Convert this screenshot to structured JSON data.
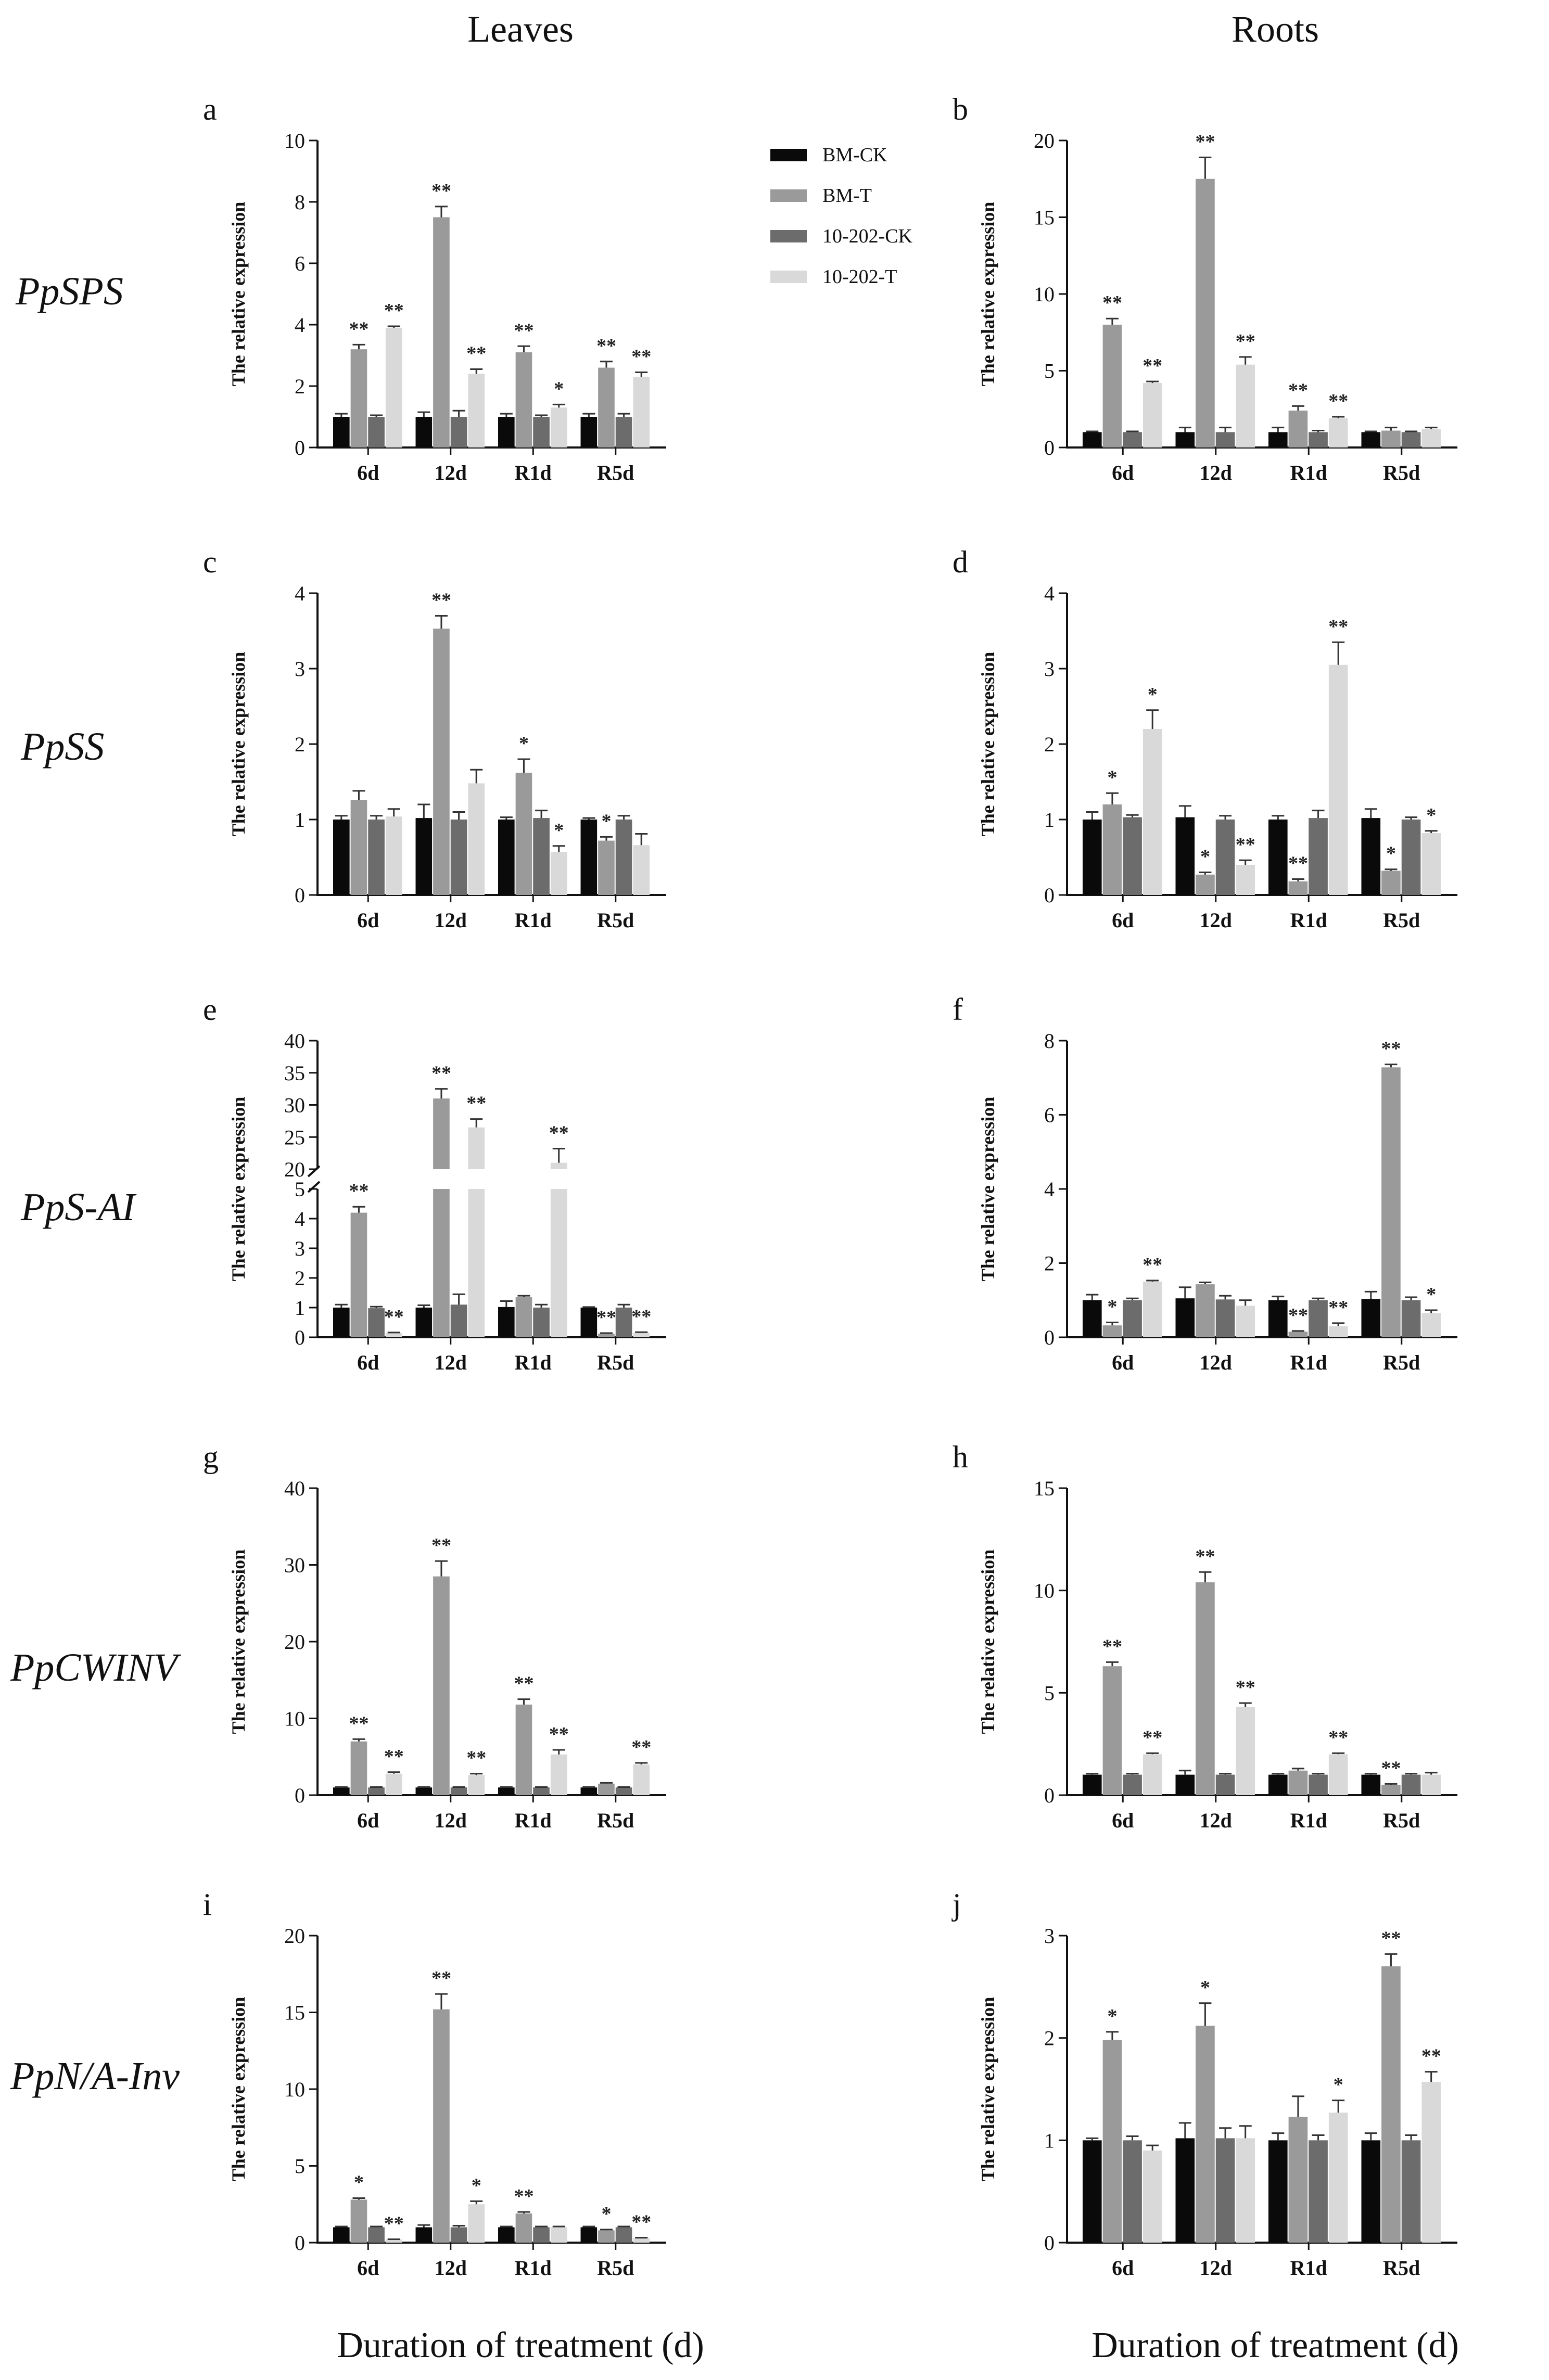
{
  "figure": {
    "column_headers": [
      "Leaves",
      "Roots"
    ],
    "x_axis_title": "Duration of treatment (d)"
  },
  "genes": [
    "PpSPS",
    "PpSS",
    "PpS-AI",
    "PpCWINV",
    "PpN/A-Inv"
  ],
  "legend": {
    "entries": [
      "BM-CK",
      "BM-T",
      "10-202-CK",
      "10-202-T"
    ]
  },
  "colors": {
    "series": [
      "#0a0a0a",
      "#9a9a9a",
      "#6c6c6c",
      "#d9d9d9"
    ],
    "axis": "#111111"
  },
  "chart_data": [
    {
      "panel": "a",
      "type": "bar",
      "ylabel": "The relative expression",
      "categories": [
        "6d",
        "12d",
        "R1d",
        "R5d"
      ],
      "ylim": [
        0,
        10
      ],
      "yticks": [
        0,
        2,
        4,
        6,
        8,
        10
      ],
      "series": [
        {
          "name": "BM-CK",
          "values": [
            1.0,
            1.0,
            1.0,
            1.0
          ],
          "errors": [
            0.1,
            0.15,
            0.1,
            0.1
          ],
          "sig": [
            "",
            "",
            "",
            ""
          ]
        },
        {
          "name": "BM-T",
          "values": [
            3.2,
            7.5,
            3.1,
            2.6
          ],
          "errors": [
            0.15,
            0.35,
            0.2,
            0.2
          ],
          "sig": [
            "**",
            "**",
            "**",
            "**"
          ]
        },
        {
          "name": "10-202-CK",
          "values": [
            1.0,
            1.0,
            1.0,
            1.0
          ],
          "errors": [
            0.05,
            0.2,
            0.05,
            0.1
          ],
          "sig": [
            "",
            "",
            "",
            ""
          ]
        },
        {
          "name": "10-202-T",
          "values": [
            3.9,
            2.4,
            1.3,
            2.3
          ],
          "errors": [
            0.05,
            0.15,
            0.1,
            0.15
          ],
          "sig": [
            "**",
            "**",
            "*",
            "**"
          ]
        }
      ]
    },
    {
      "panel": "b",
      "type": "bar",
      "ylabel": "The relative expression",
      "categories": [
        "6d",
        "12d",
        "R1d",
        "R5d"
      ],
      "ylim": [
        0,
        20
      ],
      "yticks": [
        0,
        5,
        10,
        15,
        20
      ],
      "series": [
        {
          "name": "BM-CK",
          "values": [
            1.0,
            1.0,
            1.0,
            1.0
          ],
          "errors": [
            0.05,
            0.3,
            0.3,
            0.05
          ],
          "sig": [
            "",
            "",
            "",
            ""
          ]
        },
        {
          "name": "BM-T",
          "values": [
            8.0,
            17.5,
            2.4,
            1.1
          ],
          "errors": [
            0.4,
            1.4,
            0.3,
            0.2
          ],
          "sig": [
            "**",
            "**",
            "**",
            ""
          ]
        },
        {
          "name": "10-202-CK",
          "values": [
            1.0,
            1.0,
            1.0,
            1.0
          ],
          "errors": [
            0.05,
            0.3,
            0.1,
            0.05
          ],
          "sig": [
            "",
            "",
            "",
            ""
          ]
        },
        {
          "name": "10-202-T",
          "values": [
            4.2,
            5.4,
            1.9,
            1.2
          ],
          "errors": [
            0.1,
            0.5,
            0.1,
            0.1
          ],
          "sig": [
            "**",
            "**",
            "**",
            ""
          ]
        }
      ]
    },
    {
      "panel": "c",
      "type": "bar",
      "ylabel": "The relative expression",
      "categories": [
        "6d",
        "12d",
        "R1d",
        "R5d"
      ],
      "ylim": [
        0,
        4
      ],
      "yticks": [
        0,
        1,
        2,
        3,
        4
      ],
      "series": [
        {
          "name": "BM-CK",
          "values": [
            1.0,
            1.02,
            1.0,
            1.0
          ],
          "errors": [
            0.05,
            0.18,
            0.03,
            0.02
          ],
          "sig": [
            "",
            "",
            "",
            ""
          ]
        },
        {
          "name": "BM-T",
          "values": [
            1.26,
            3.53,
            1.62,
            0.72
          ],
          "errors": [
            0.12,
            0.17,
            0.18,
            0.05
          ],
          "sig": [
            "",
            "**",
            "*",
            "*"
          ]
        },
        {
          "name": "10-202-CK",
          "values": [
            1.0,
            1.0,
            1.02,
            1.0
          ],
          "errors": [
            0.05,
            0.1,
            0.1,
            0.05
          ],
          "sig": [
            "",
            "",
            "",
            ""
          ]
        },
        {
          "name": "10-202-T",
          "values": [
            1.04,
            1.48,
            0.57,
            0.66
          ],
          "errors": [
            0.1,
            0.18,
            0.08,
            0.15
          ],
          "sig": [
            "",
            "",
            "*",
            ""
          ]
        }
      ]
    },
    {
      "panel": "d",
      "type": "bar",
      "ylabel": "The relative expression",
      "categories": [
        "6d",
        "12d",
        "R1d",
        "R5d"
      ],
      "ylim": [
        0,
        4
      ],
      "yticks": [
        0,
        1,
        2,
        3,
        4
      ],
      "series": [
        {
          "name": "BM-CK",
          "values": [
            1.0,
            1.03,
            1.0,
            1.02
          ],
          "errors": [
            0.1,
            0.15,
            0.05,
            0.12
          ],
          "sig": [
            "",
            "",
            "",
            ""
          ]
        },
        {
          "name": "BM-T",
          "values": [
            1.2,
            0.27,
            0.18,
            0.32
          ],
          "errors": [
            0.15,
            0.03,
            0.03,
            0.02
          ],
          "sig": [
            "*",
            "*",
            "**",
            "*"
          ]
        },
        {
          "name": "10-202-CK",
          "values": [
            1.03,
            1.0,
            1.02,
            1.0
          ],
          "errors": [
            0.03,
            0.05,
            0.1,
            0.03
          ],
          "sig": [
            "",
            "",
            "",
            ""
          ]
        },
        {
          "name": "10-202-T",
          "values": [
            2.2,
            0.4,
            3.05,
            0.82
          ],
          "errors": [
            0.25,
            0.06,
            0.3,
            0.03
          ],
          "sig": [
            "*",
            "**",
            "**",
            "*"
          ]
        }
      ]
    },
    {
      "panel": "e",
      "type": "bar",
      "ylabel": "The relative expression",
      "categories": [
        "6d",
        "12d",
        "R1d",
        "R5d"
      ],
      "axis_break": {
        "lower": [
          0,
          5
        ],
        "upper": [
          20,
          40
        ]
      },
      "yticks": [
        0,
        1,
        2,
        3,
        4,
        5,
        20,
        25,
        30,
        35,
        40
      ],
      "series": [
        {
          "name": "BM-CK",
          "values": [
            1.0,
            1.0,
            1.02,
            1.0
          ],
          "errors": [
            0.1,
            0.08,
            0.2,
            0.02
          ],
          "sig": [
            "",
            "",
            "",
            ""
          ]
        },
        {
          "name": "BM-T",
          "values": [
            4.2,
            31.0,
            1.35,
            0.12
          ],
          "errors": [
            0.2,
            1.5,
            0.05,
            0.02
          ],
          "sig": [
            "**",
            "**",
            "",
            "**"
          ]
        },
        {
          "name": "10-202-CK",
          "values": [
            0.98,
            1.1,
            1.0,
            1.0
          ],
          "errors": [
            0.05,
            0.35,
            0.1,
            0.1
          ],
          "sig": [
            "",
            "",
            "",
            ""
          ]
        },
        {
          "name": "10-202-T",
          "values": [
            0.14,
            26.5,
            21.0,
            0.15
          ],
          "errors": [
            0.02,
            1.3,
            2.2,
            0.02
          ],
          "sig": [
            "**",
            "**",
            "**",
            "**"
          ]
        }
      ]
    },
    {
      "panel": "f",
      "type": "bar",
      "ylabel": "The relative expression",
      "categories": [
        "6d",
        "12d",
        "R1d",
        "R5d"
      ],
      "ylim": [
        0,
        8
      ],
      "yticks": [
        0,
        2,
        4,
        6,
        8
      ],
      "series": [
        {
          "name": "BM-CK",
          "values": [
            1.0,
            1.05,
            1.0,
            1.03
          ],
          "errors": [
            0.15,
            0.3,
            0.1,
            0.2
          ],
          "sig": [
            "",
            "",
            "",
            ""
          ]
        },
        {
          "name": "BM-T",
          "values": [
            0.32,
            1.43,
            0.15,
            7.28
          ],
          "errors": [
            0.08,
            0.05,
            0.02,
            0.08
          ],
          "sig": [
            "*",
            "",
            "**",
            "**"
          ]
        },
        {
          "name": "10-202-CK",
          "values": [
            1.0,
            1.02,
            1.0,
            1.0
          ],
          "errors": [
            0.05,
            0.1,
            0.05,
            0.08
          ],
          "sig": [
            "",
            "",
            "",
            ""
          ]
        },
        {
          "name": "10-202-T",
          "values": [
            1.5,
            0.85,
            0.3,
            0.65
          ],
          "errors": [
            0.03,
            0.15,
            0.08,
            0.08
          ],
          "sig": [
            "**",
            "",
            "**",
            "*"
          ]
        }
      ]
    },
    {
      "panel": "g",
      "type": "bar",
      "ylabel": "The relative expression",
      "categories": [
        "6d",
        "12d",
        "R1d",
        "R5d"
      ],
      "ylim": [
        0,
        40
      ],
      "yticks": [
        0,
        10,
        20,
        30,
        40
      ],
      "series": [
        {
          "name": "BM-CK",
          "values": [
            1.0,
            1.0,
            1.0,
            1.0
          ],
          "errors": [
            0.05,
            0.05,
            0.05,
            0.05
          ],
          "sig": [
            "",
            "",
            "",
            ""
          ]
        },
        {
          "name": "BM-T",
          "values": [
            7.0,
            28.5,
            11.8,
            1.5
          ],
          "errors": [
            0.3,
            2.0,
            0.7,
            0.1
          ],
          "sig": [
            "**",
            "**",
            "**",
            ""
          ]
        },
        {
          "name": "10-202-CK",
          "values": [
            1.0,
            1.0,
            1.0,
            1.0
          ],
          "errors": [
            0.05,
            0.05,
            0.05,
            0.05
          ],
          "sig": [
            "",
            "",
            "",
            ""
          ]
        },
        {
          "name": "10-202-T",
          "values": [
            2.8,
            2.6,
            5.3,
            4.0
          ],
          "errors": [
            0.2,
            0.2,
            0.6,
            0.2
          ],
          "sig": [
            "**",
            "**",
            "**",
            "**"
          ]
        }
      ]
    },
    {
      "panel": "h",
      "type": "bar",
      "ylabel": "The relative expression",
      "categories": [
        "6d",
        "12d",
        "R1d",
        "R5d"
      ],
      "ylim": [
        0,
        15
      ],
      "yticks": [
        0,
        5,
        10,
        15
      ],
      "series": [
        {
          "name": "BM-CK",
          "values": [
            1.0,
            1.0,
            1.0,
            1.0
          ],
          "errors": [
            0.05,
            0.2,
            0.05,
            0.05
          ],
          "sig": [
            "",
            "",
            "",
            ""
          ]
        },
        {
          "name": "BM-T",
          "values": [
            6.3,
            10.4,
            1.2,
            0.5
          ],
          "errors": [
            0.2,
            0.5,
            0.1,
            0.05
          ],
          "sig": [
            "**",
            "**",
            "",
            "**"
          ]
        },
        {
          "name": "10-202-CK",
          "values": [
            1.0,
            1.0,
            1.0,
            1.0
          ],
          "errors": [
            0.05,
            0.05,
            0.05,
            0.05
          ],
          "sig": [
            "",
            "",
            "",
            ""
          ]
        },
        {
          "name": "10-202-T",
          "values": [
            2.0,
            4.3,
            2.0,
            1.0
          ],
          "errors": [
            0.05,
            0.2,
            0.05,
            0.1
          ],
          "sig": [
            "**",
            "**",
            "**",
            ""
          ]
        }
      ]
    },
    {
      "panel": "i",
      "type": "bar",
      "ylabel": "The relative expression",
      "categories": [
        "6d",
        "12d",
        "R1d",
        "R5d"
      ],
      "ylim": [
        0,
        20
      ],
      "yticks": [
        0,
        5,
        10,
        15,
        20
      ],
      "series": [
        {
          "name": "BM-CK",
          "values": [
            1.0,
            1.0,
            1.0,
            1.0
          ],
          "errors": [
            0.05,
            0.15,
            0.05,
            0.05
          ],
          "sig": [
            "",
            "",
            "",
            ""
          ]
        },
        {
          "name": "BM-T",
          "values": [
            2.8,
            15.2,
            1.9,
            0.8
          ],
          "errors": [
            0.1,
            1.0,
            0.1,
            0.05
          ],
          "sig": [
            "*",
            "**",
            "**",
            "*"
          ]
        },
        {
          "name": "10-202-CK",
          "values": [
            1.0,
            1.0,
            1.0,
            1.0
          ],
          "errors": [
            0.05,
            0.1,
            0.05,
            0.05
          ],
          "sig": [
            "",
            "",
            "",
            ""
          ]
        },
        {
          "name": "10-202-T",
          "values": [
            0.2,
            2.5,
            1.0,
            0.3
          ],
          "errors": [
            0.02,
            0.2,
            0.05,
            0.02
          ],
          "sig": [
            "**",
            "*",
            "",
            "**"
          ]
        }
      ]
    },
    {
      "panel": "j",
      "type": "bar",
      "ylabel": "The relative expression",
      "categories": [
        "6d",
        "12d",
        "R1d",
        "R5d"
      ],
      "ylim": [
        0,
        3
      ],
      "yticks": [
        0,
        1,
        2,
        3
      ],
      "series": [
        {
          "name": "BM-CK",
          "values": [
            1.0,
            1.02,
            1.0,
            1.0
          ],
          "errors": [
            0.02,
            0.15,
            0.07,
            0.07
          ],
          "sig": [
            "",
            "",
            "",
            ""
          ]
        },
        {
          "name": "BM-T",
          "values": [
            1.98,
            2.12,
            1.23,
            2.7
          ],
          "errors": [
            0.08,
            0.22,
            0.2,
            0.12
          ],
          "sig": [
            "*",
            "*",
            "",
            "**"
          ]
        },
        {
          "name": "10-202-CK",
          "values": [
            1.0,
            1.02,
            1.0,
            1.0
          ],
          "errors": [
            0.04,
            0.1,
            0.05,
            0.05
          ],
          "sig": [
            "",
            "",
            "",
            ""
          ]
        },
        {
          "name": "10-202-T",
          "values": [
            0.9,
            1.02,
            1.27,
            1.57
          ],
          "errors": [
            0.05,
            0.12,
            0.12,
            0.1
          ],
          "sig": [
            "",
            "",
            "*",
            "**"
          ]
        }
      ]
    }
  ]
}
